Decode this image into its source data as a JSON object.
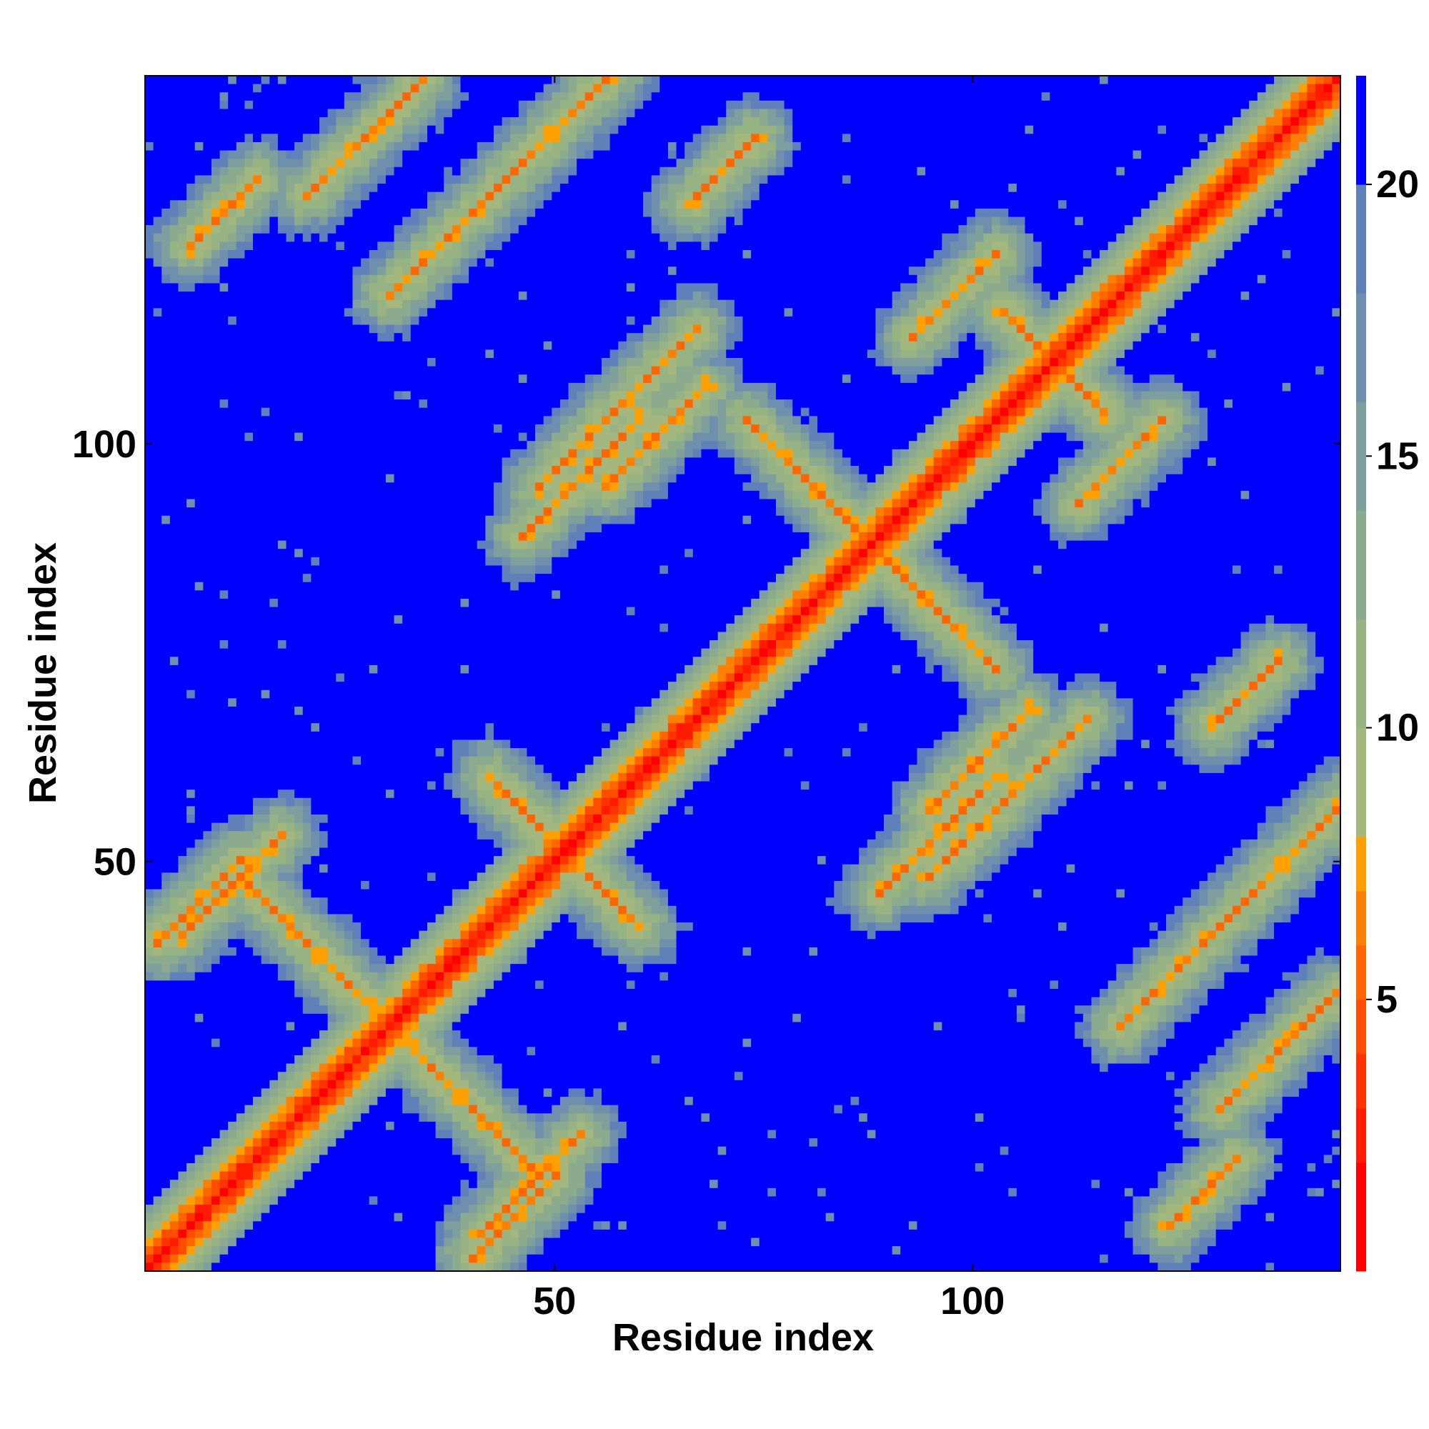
{
  "chart_data": {
    "type": "heatmap",
    "title": "",
    "xlabel": "Residue index",
    "ylabel": "Residue index",
    "xlim": [
      1,
      144
    ],
    "ylim": [
      1,
      144
    ],
    "n_residues": 144,
    "x_ticks": [
      50,
      100
    ],
    "y_ticks": [
      50,
      100
    ],
    "colorbar": {
      "ticks": [
        5,
        10,
        15,
        20
      ],
      "range": [
        0,
        22
      ],
      "levels": [
        {
          "upper": 2,
          "color": "#ff0000"
        },
        {
          "upper": 3,
          "color": "#ff1a00"
        },
        {
          "upper": 4,
          "color": "#ff3300"
        },
        {
          "upper": 5,
          "color": "#ff4d00"
        },
        {
          "upper": 6,
          "color": "#ff6600"
        },
        {
          "upper": 7,
          "color": "#ff8000"
        },
        {
          "upper": 8,
          "color": "#ffa000"
        },
        {
          "upper": 10,
          "color": "#a3b77e"
        },
        {
          "upper": 12,
          "color": "#97b384"
        },
        {
          "upper": 14,
          "color": "#8caa8e"
        },
        {
          "upper": 16,
          "color": "#7f9e9e"
        },
        {
          "upper": 18,
          "color": "#6f8fad"
        },
        {
          "upper": 20,
          "color": "#5f80b8"
        },
        {
          "upper": 22,
          "color": "#0000ff"
        }
      ]
    },
    "contact_bands": [
      {
        "orientation": "anti",
        "center": [
          84,
          92
        ],
        "length": 22
      },
      {
        "orientation": "anti",
        "center": [
          50,
          52
        ],
        "length": 16
      },
      {
        "orientation": "anti",
        "center": [
          22,
          38
        ],
        "length": 18
      },
      {
        "orientation": "anti",
        "center": [
          110,
          110
        ],
        "length": 12
      },
      {
        "orientation": "parallel",
        "center": [
          27,
          137
        ],
        "length": 14
      },
      {
        "orientation": "parallel",
        "center": [
          62,
          101
        ],
        "length": 12
      },
      {
        "orientation": "parallel",
        "center": [
          108,
          61
        ],
        "length": 12
      },
      {
        "orientation": "parallel",
        "center": [
          53,
          96
        ],
        "length": 14
      },
      {
        "orientation": "parallel",
        "center": [
          102,
          55
        ],
        "length": 14
      },
      {
        "orientation": "parallel",
        "center": [
          7,
          45
        ],
        "length": 10
      },
      {
        "orientation": "parallel",
        "center": [
          47,
          11
        ],
        "length": 12
      },
      {
        "orientation": "parallel",
        "center": [
          124,
          36
        ],
        "length": 12
      },
      {
        "orientation": "parallel",
        "center": [
          138,
          50
        ],
        "length": 14
      },
      {
        "orientation": "parallel",
        "center": [
          70,
          133
        ],
        "length": 8
      },
      {
        "orientation": "parallel",
        "center": [
          10,
          128
        ],
        "length": 8
      },
      {
        "orientation": "parallel",
        "center": [
          118,
          98
        ],
        "length": 10
      }
    ],
    "grid": false,
    "legend": "none"
  }
}
